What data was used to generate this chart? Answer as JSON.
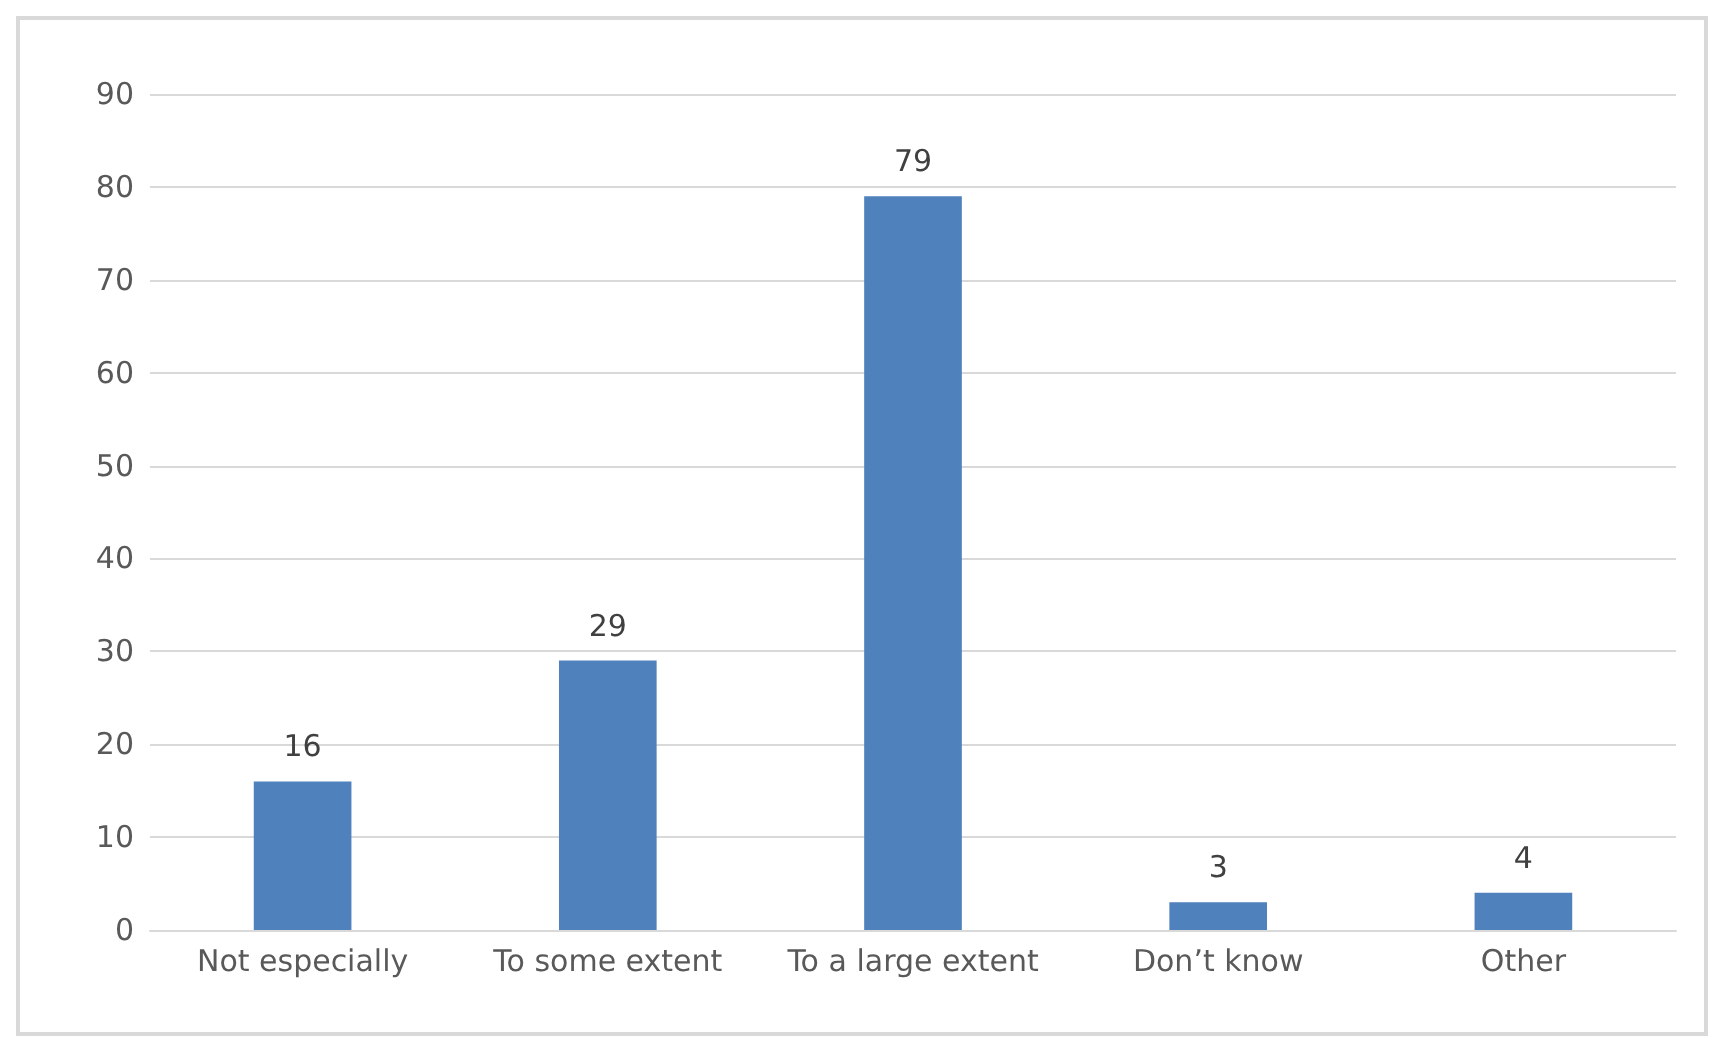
{
  "chart_data": {
    "type": "bar",
    "categories": [
      "Not especially",
      "To some extent",
      "To a large extent",
      "Don’t know",
      "Other"
    ],
    "values": [
      16,
      29,
      79,
      3,
      4
    ],
    "color": "#4f81bd",
    "ylim": [
      0,
      90
    ],
    "yticks": [
      0,
      10,
      20,
      30,
      40,
      50,
      60,
      70,
      80,
      90
    ],
    "grid": "y",
    "data_labels": true
  }
}
